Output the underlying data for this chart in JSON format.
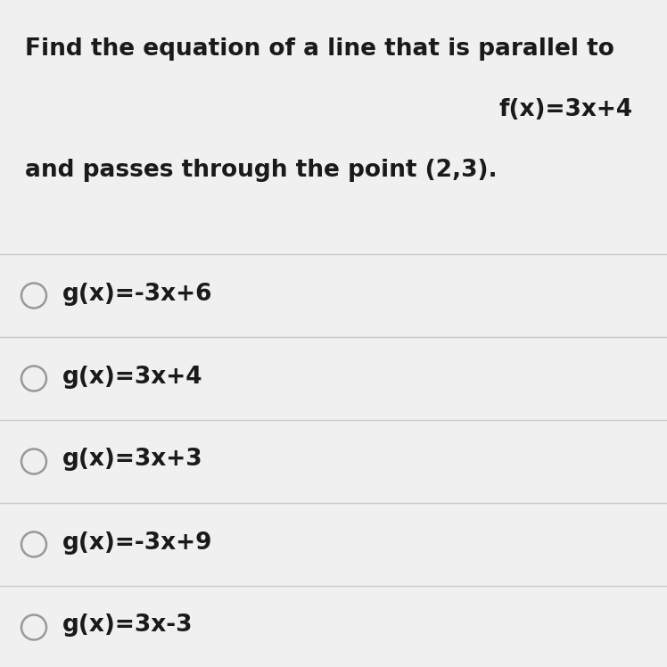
{
  "background_color": "#f0f0f0",
  "question_line1": "Find the equation of a line that is parallel to",
  "question_line2": "f(x)=3x+4",
  "question_line3": "and passes through the point (2,3).",
  "options": [
    "g(x)=-3x+6",
    "g(x)=3x+4",
    "g(x)=3x+3",
    "g(x)=-3x+9",
    "g(x)=3x-3"
  ],
  "text_color": "#1a1a1a",
  "line_color": "#c8c8c8",
  "circle_edge_color": "#999999",
  "question_fontsize": 19,
  "option_fontsize": 19,
  "equation_fontsize": 19,
  "fig_width": 7.48,
  "fig_height": 7.48,
  "dpi": 100
}
